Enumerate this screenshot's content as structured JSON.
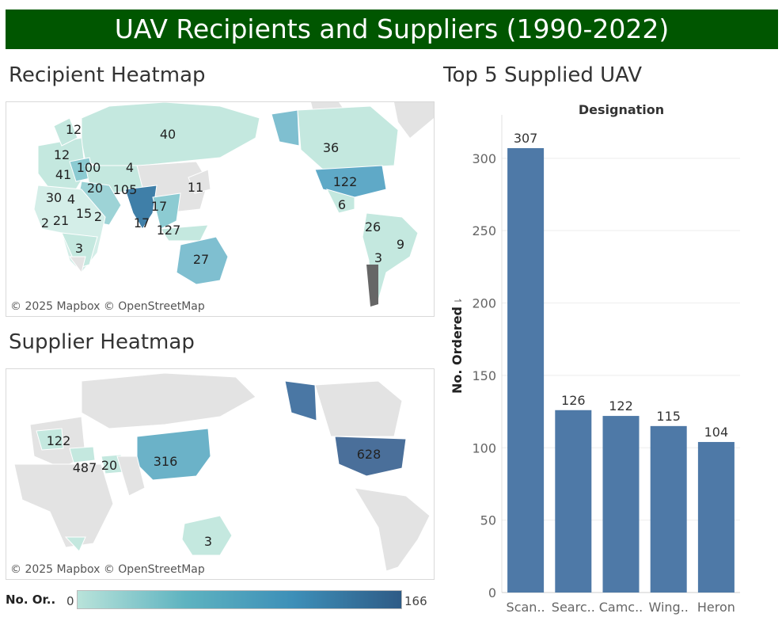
{
  "title": "UAV Recipients and Suppliers (1990-2022)",
  "recipient_section": {
    "title": "Recipient Heatmap",
    "attribution": "© 2025 Mapbox © OpenStreetMap",
    "labels": [
      "12",
      "40",
      "12",
      "36",
      "41",
      "100",
      "4",
      "11",
      "30",
      "4",
      "20",
      "105",
      "122",
      "17",
      "6",
      "2",
      "21",
      "15",
      "2",
      "17",
      "127",
      "26",
      "9",
      "3",
      "27",
      "3"
    ]
  },
  "supplier_section": {
    "title": "Supplier Heatmap",
    "attribution": "© 2025 Mapbox © OpenStreetMap",
    "labels": [
      "122",
      "487",
      "20",
      "316",
      "628",
      "3"
    ]
  },
  "legend": {
    "title": "No. Or..",
    "min": "0",
    "max": "166",
    "colors": [
      "#b9e3da",
      "#5eb3c0",
      "#3d8fb8",
      "#2e5b86"
    ]
  },
  "chart_data": {
    "type": "bar",
    "title": "Top 5 Supplied UAV",
    "subtitle": "Designation",
    "categories": [
      "Scan..",
      "Searc..",
      "Camc..",
      "Wing..",
      "Heron"
    ],
    "values": [
      307,
      126,
      122,
      115,
      104
    ],
    "ylabel": "No. Ordered",
    "ylim": [
      0,
      330
    ],
    "yticks": [
      0,
      50,
      100,
      150,
      200,
      250,
      300
    ],
    "grid": true,
    "color": "#4e79a7"
  }
}
